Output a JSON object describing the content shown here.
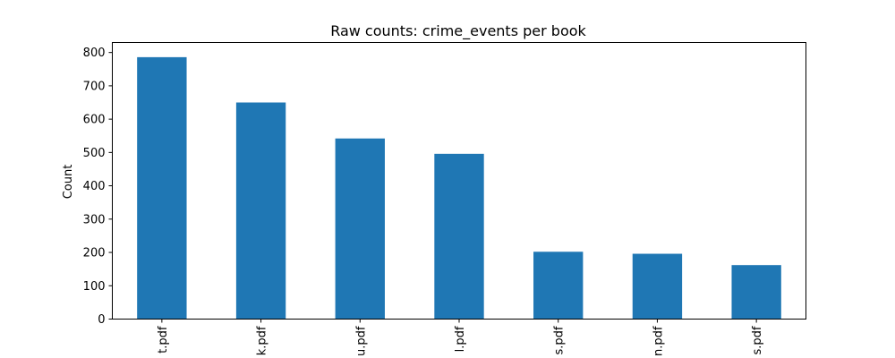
{
  "chart_data": {
    "type": "bar",
    "title": "Raw counts: crime_events per book",
    "xlabel": "",
    "ylabel": "Count",
    "ylim": [
      0,
      830
    ],
    "yticks": [
      0,
      100,
      200,
      300,
      400,
      500,
      600,
      700,
      800
    ],
    "categories": [
      "t.pdf",
      "k.pdf",
      "u.pdf",
      "l.pdf",
      "s.pdf",
      "n.pdf",
      "s.pdf"
    ],
    "values": [
      786,
      650,
      542,
      496,
      202,
      196,
      162
    ],
    "bar_color": "#1f77b4",
    "grid": false,
    "legend": "none"
  }
}
